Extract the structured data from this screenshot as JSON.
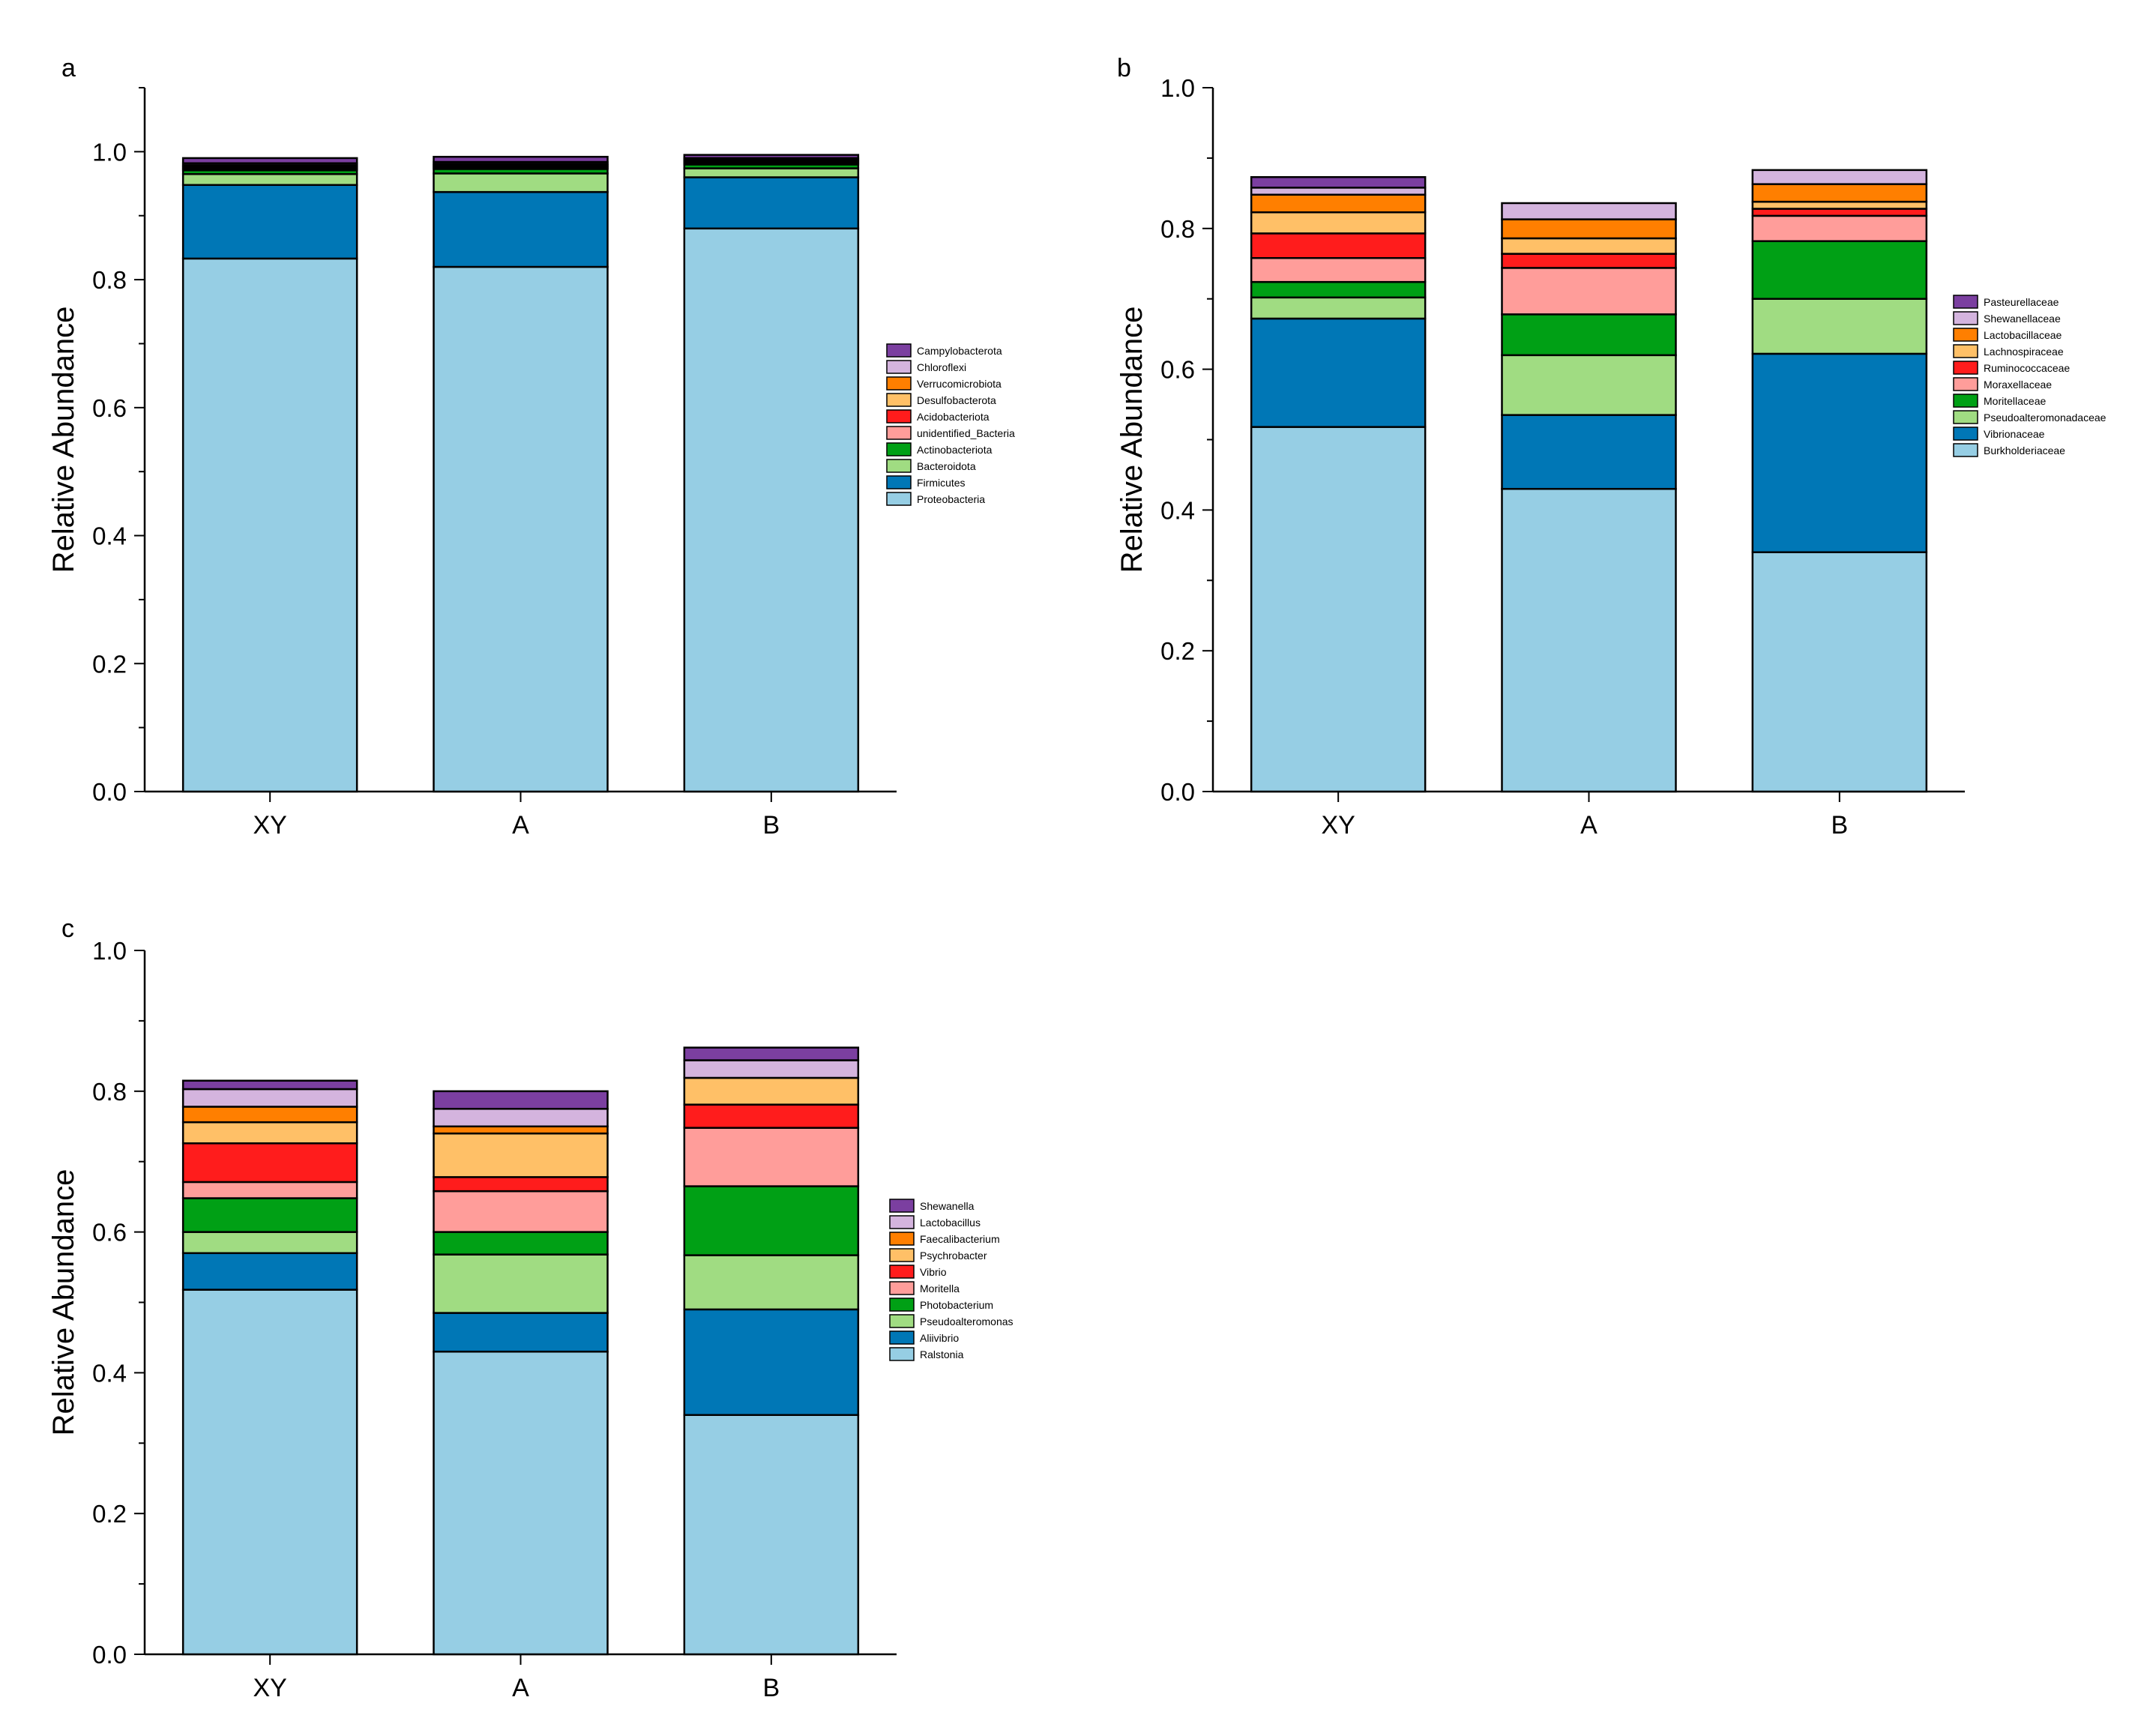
{
  "chart_data": [
    {
      "panel_label": "a",
      "type": "bar",
      "stacked": true,
      "ylabel": "Relative Abundance",
      "xlabel": "",
      "ylim": [
        0,
        1.1
      ],
      "yticks": [
        "0.0",
        "0.2",
        "0.4",
        "0.6",
        "0.8",
        "1.0"
      ],
      "categories": [
        "XY",
        "A",
        "B"
      ],
      "legend_position": "right",
      "series": [
        {
          "name": "Proteobacteria",
          "color": "#96CEE4",
          "values": [
            0.833,
            0.82,
            0.88
          ]
        },
        {
          "name": "Firmicutes",
          "color": "#0077B6",
          "values": [
            0.115,
            0.117,
            0.08
          ]
        },
        {
          "name": "Bacteroidota",
          "color": "#A0DC82",
          "values": [
            0.017,
            0.029,
            0.014
          ]
        },
        {
          "name": "Actinobacteriota",
          "color": "#00A015",
          "values": [
            0.006,
            0.007,
            0.006
          ]
        },
        {
          "name": "unidentified_Bacteria",
          "color": "#FF9D9A",
          "values": [
            0.002,
            0.002,
            0.002
          ]
        },
        {
          "name": "Acidobacteriota",
          "color": "#FF1C1C",
          "values": [
            0.002,
            0.002,
            0.002
          ]
        },
        {
          "name": "Desulfobacterota",
          "color": "#FFC067",
          "values": [
            0.002,
            0.002,
            0.002
          ]
        },
        {
          "name": "Verrucomicrobiota",
          "color": "#FF7F00",
          "values": [
            0.002,
            0.002,
            0.002
          ]
        },
        {
          "name": "Chloroflexi",
          "color": "#D4B4DE",
          "values": [
            0.003,
            0.003,
            0.002
          ]
        },
        {
          "name": "Campylobacterota",
          "color": "#7B3FA0",
          "values": [
            0.008,
            0.008,
            0.005
          ]
        }
      ]
    },
    {
      "panel_label": "b",
      "type": "bar",
      "stacked": true,
      "ylabel": "Relative Abundance",
      "xlabel": "",
      "ylim": [
        0,
        1.0
      ],
      "yticks": [
        "0.0",
        "0.2",
        "0.4",
        "0.6",
        "0.8",
        "1.0"
      ],
      "categories": [
        "XY",
        "A",
        "B"
      ],
      "legend_position": "right",
      "series": [
        {
          "name": "Burkholderiaceae",
          "color": "#96CEE4",
          "values": [
            0.518,
            0.43,
            0.34
          ]
        },
        {
          "name": "Vibrionaceae",
          "color": "#0077B6",
          "values": [
            0.154,
            0.105,
            0.282
          ]
        },
        {
          "name": "Pseudoalteromonadaceae",
          "color": "#A0DC82",
          "values": [
            0.03,
            0.085,
            0.078
          ]
        },
        {
          "name": "Moritellaceae",
          "color": "#00A015",
          "values": [
            0.022,
            0.058,
            0.082
          ]
        },
        {
          "name": "Moraxellaceae",
          "color": "#FF9D9A",
          "values": [
            0.034,
            0.066,
            0.036
          ]
        },
        {
          "name": "Ruminococcaceae",
          "color": "#FF1C1C",
          "values": [
            0.035,
            0.02,
            0.01
          ]
        },
        {
          "name": "Lachnospiraceae",
          "color": "#FFC067",
          "values": [
            0.03,
            0.022,
            0.01
          ]
        },
        {
          "name": "Lactobacillaceae",
          "color": "#FF7F00",
          "values": [
            0.025,
            0.027,
            0.025
          ]
        },
        {
          "name": "Shewanellaceae",
          "color": "#D4B4DE",
          "values": [
            0.01,
            0.023,
            0.02
          ]
        },
        {
          "name": "Pasteurellaceae",
          "color": "#7B3FA0",
          "values": [
            0.015,
            0.0,
            0.0
          ]
        }
      ]
    },
    {
      "panel_label": "c",
      "type": "bar",
      "stacked": true,
      "ylabel": "Relative Abundance",
      "xlabel": "",
      "ylim": [
        0,
        1.0
      ],
      "yticks": [
        "0.0",
        "0.2",
        "0.4",
        "0.6",
        "0.8",
        "1.0"
      ],
      "categories": [
        "XY",
        "A",
        "B"
      ],
      "legend_position": "right",
      "series": [
        {
          "name": "Ralstonia",
          "color": "#96CEE4",
          "values": [
            0.518,
            0.43,
            0.34
          ]
        },
        {
          "name": "Aliivibrio",
          "color": "#0077B6",
          "values": [
            0.052,
            0.055,
            0.15
          ]
        },
        {
          "name": "Pseudoalteromonas",
          "color": "#A0DC82",
          "values": [
            0.03,
            0.083,
            0.077
          ]
        },
        {
          "name": "Photobacterium",
          "color": "#00A015",
          "values": [
            0.048,
            0.032,
            0.098
          ]
        },
        {
          "name": "Moritella",
          "color": "#FF9D9A",
          "values": [
            0.023,
            0.058,
            0.083
          ]
        },
        {
          "name": "Vibrio",
          "color": "#FF1C1C",
          "values": [
            0.055,
            0.02,
            0.033
          ]
        },
        {
          "name": "Psychrobacter",
          "color": "#FFC067",
          "values": [
            0.03,
            0.062,
            0.038
          ]
        },
        {
          "name": "Faecalibacterium",
          "color": "#FF7F00",
          "values": [
            0.022,
            0.01,
            0.0
          ]
        },
        {
          "name": "Lactobacillus",
          "color": "#D4B4DE",
          "values": [
            0.025,
            0.025,
            0.025
          ]
        },
        {
          "name": "Shewanella",
          "color": "#7B3FA0",
          "values": [
            0.012,
            0.025,
            0.018
          ]
        }
      ]
    }
  ]
}
